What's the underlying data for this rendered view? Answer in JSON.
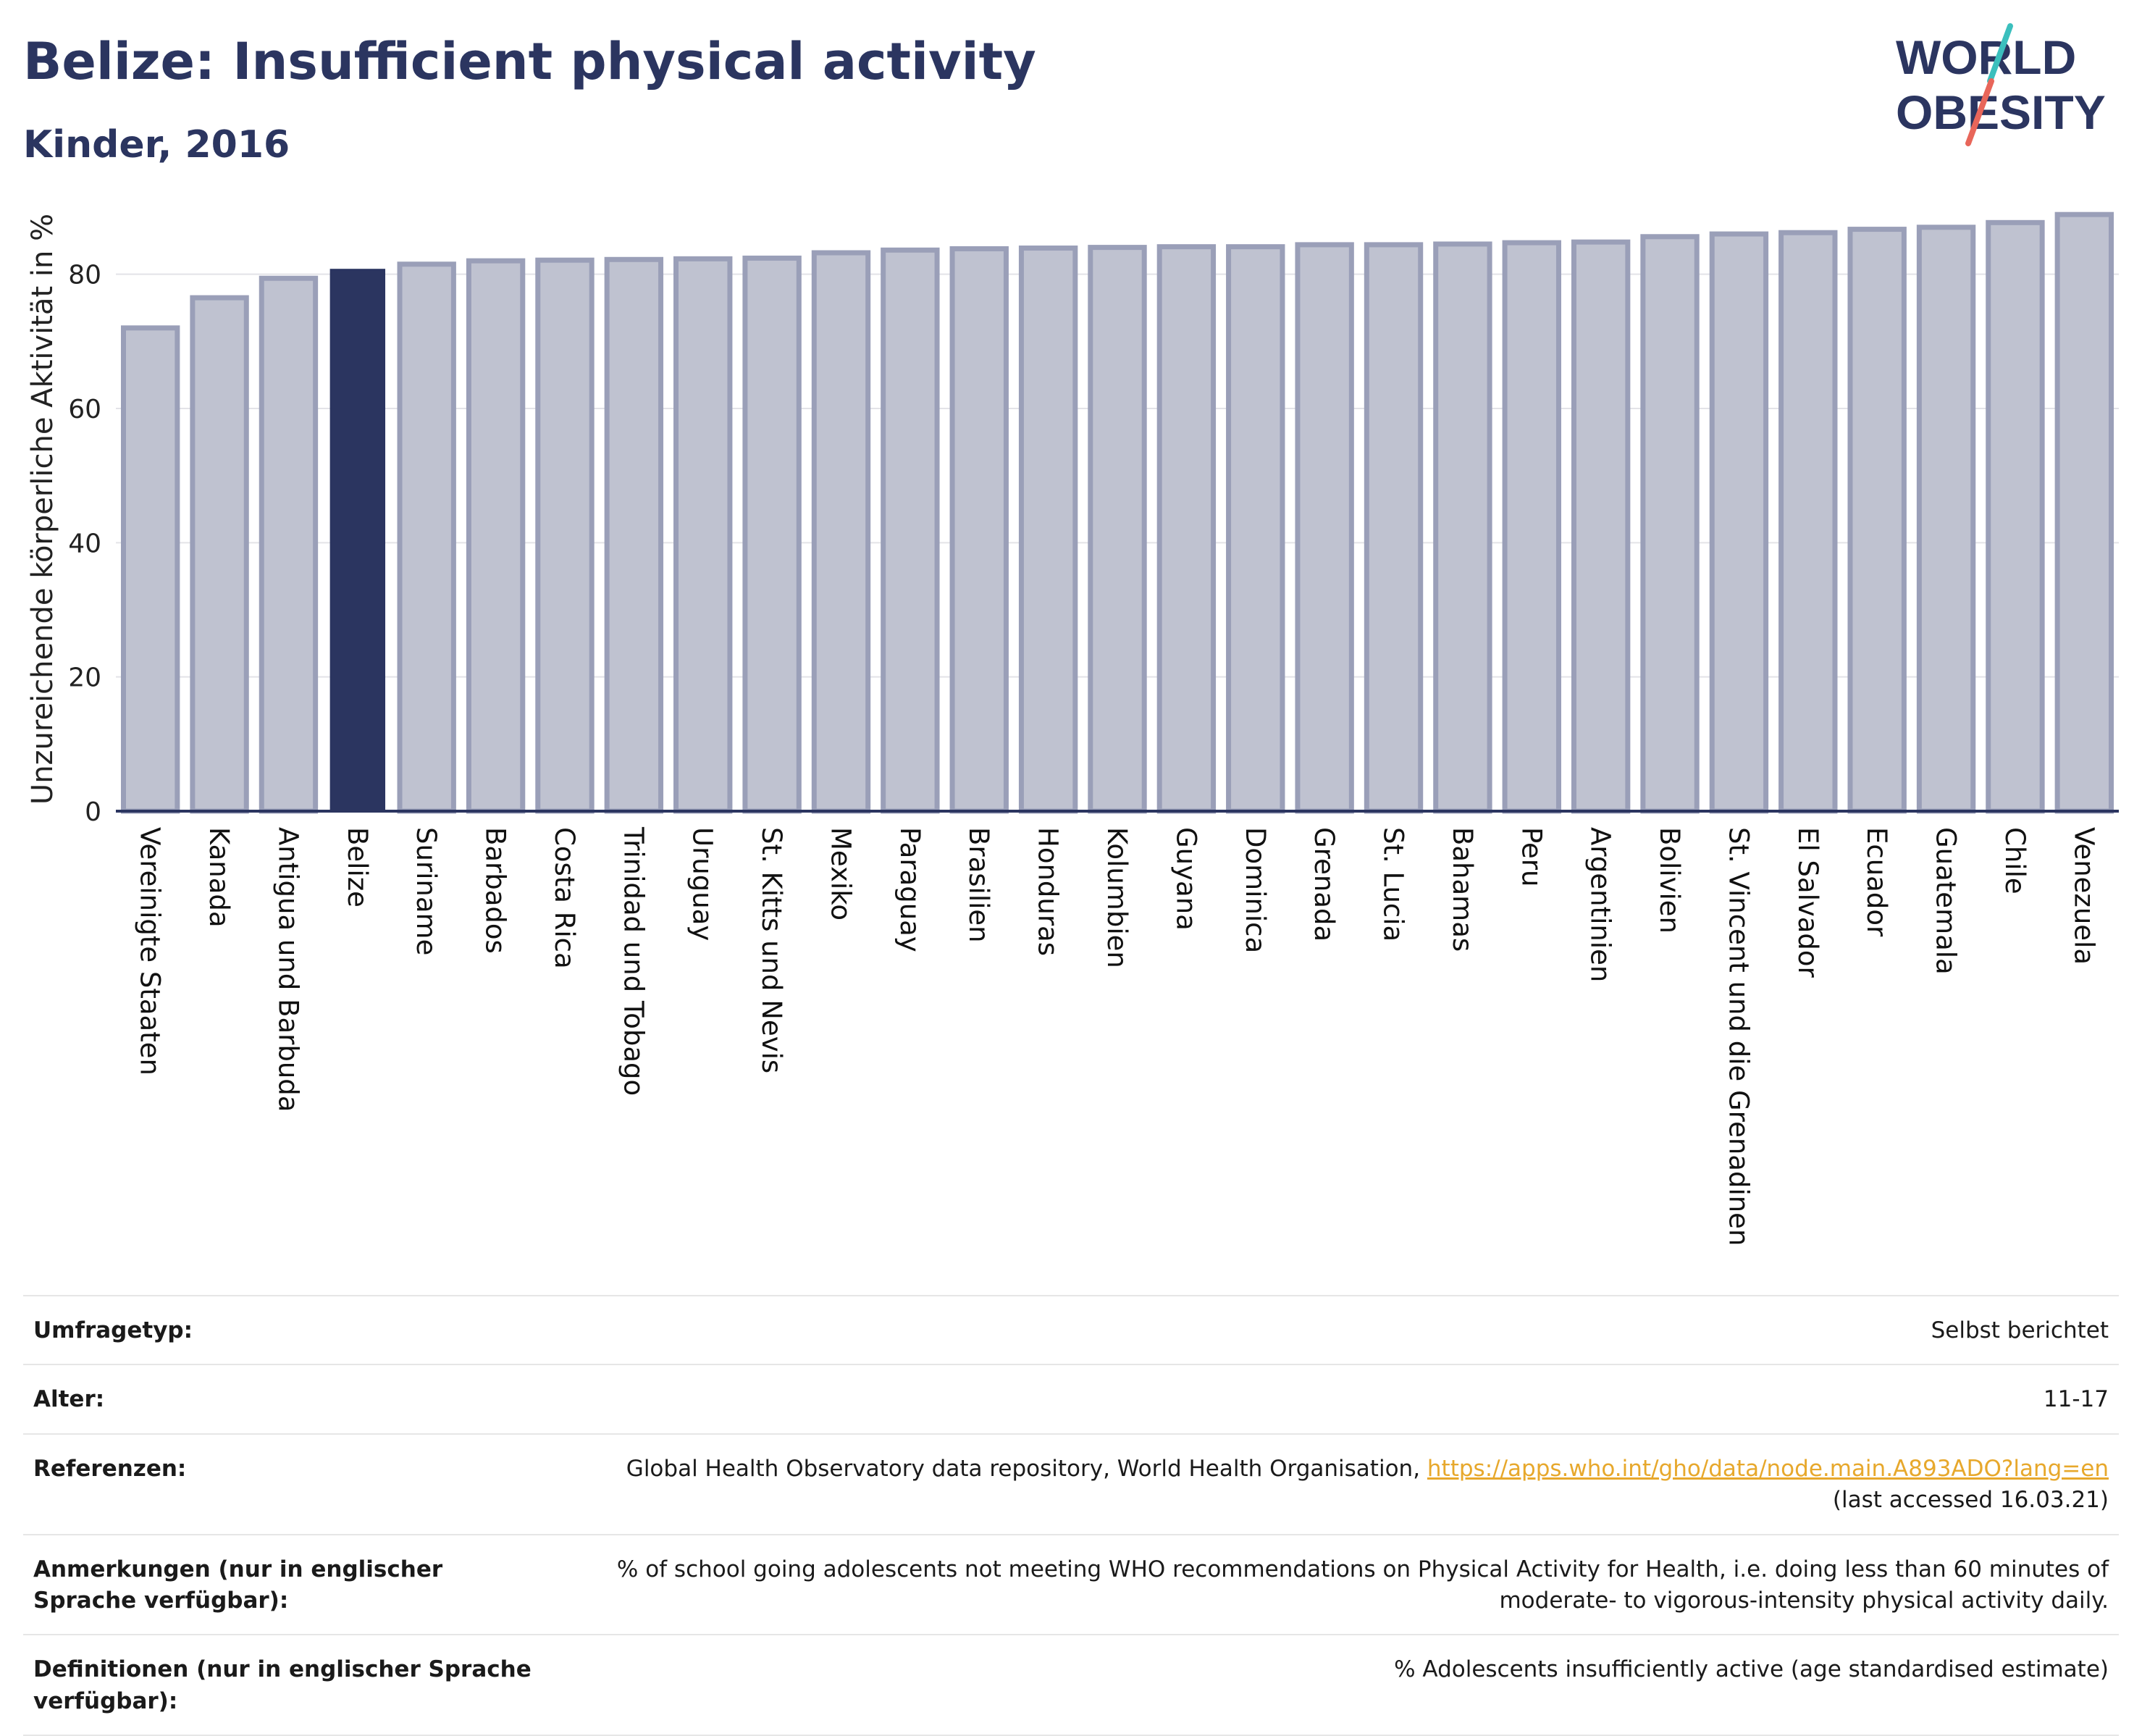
{
  "header": {
    "title": "Belize: Insufficient physical activity",
    "subtitle": "Kinder, 2016"
  },
  "logo": {
    "line1": "WORLD",
    "line2": "OBESITY",
    "accent_teal": "#3bbfbd",
    "accent_red": "#e8665a",
    "text_color": "#2b3560"
  },
  "colors": {
    "highlight_bar": "#2b3560",
    "other_bar": "#bfc2d0",
    "other_bar_border": "#9a9fb8"
  },
  "chart_data": {
    "type": "bar",
    "title": "Belize: Insufficient physical activity",
    "subtitle": "Kinder, 2016",
    "xlabel": "",
    "ylabel": "Unzureichende körperliche Aktivität in %",
    "ylim": [
      0,
      90
    ],
    "yticks": [
      0,
      20,
      40,
      60,
      80
    ],
    "grid": true,
    "highlight": "Belize",
    "categories": [
      "Vereinigte Staaten",
      "Kanada",
      "Antigua und Barbuda",
      "Belize",
      "Suriname",
      "Barbados",
      "Costa Rica",
      "Trinidad und Tobago",
      "Uruguay",
      "St. Kitts und Nevis",
      "Mexiko",
      "Paraguay",
      "Brasilien",
      "Honduras",
      "Kolumbien",
      "Guyana",
      "Dominica",
      "Grenada",
      "St. Lucia",
      "Bahamas",
      "Peru",
      "Argentinien",
      "Bolivien",
      "St. Vincent und die Grenadinen",
      "El Salvador",
      "Ecuador",
      "Guatemala",
      "Chile",
      "Venezuela"
    ],
    "values": [
      72.0,
      76.5,
      79.4,
      80.7,
      81.5,
      82.0,
      82.1,
      82.2,
      82.3,
      82.4,
      83.2,
      83.6,
      83.8,
      83.9,
      84.0,
      84.1,
      84.1,
      84.4,
      84.4,
      84.5,
      84.7,
      84.8,
      85.6,
      86.0,
      86.2,
      86.7,
      87.0,
      87.7,
      88.9
    ]
  },
  "info": {
    "rows": [
      {
        "label": "Umfragetyp:",
        "value": "Selbst berichtet"
      },
      {
        "label": "Alter:",
        "value": "11-17"
      },
      {
        "label": "Referenzen:",
        "value_prefix": "Global Health Observatory data repository, World Health Organisation, ",
        "link": "https://apps.who.int/gho/data/node.main.A893ADO?lang=en",
        "value_suffix": "(last accessed 16.03.21)"
      },
      {
        "label": "Anmerkungen (nur in englischer Sprache verfügbar):",
        "value": "% of school going adolescents not meeting WHO recommendations on Physical Activity for Health, i.e. doing less than 60 minutes of moderate- to vigorous-intensity physical activity daily."
      },
      {
        "label": "Definitionen (nur in englischer Sprache verfügbar):",
        "value": "% Adolescents insufficiently active (age standardised estimate)"
      }
    ]
  }
}
